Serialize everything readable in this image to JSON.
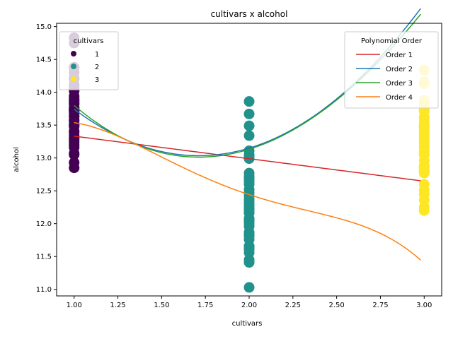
{
  "chart_data": {
    "type": "scatter",
    "title": "cultivars x alcohol",
    "xlabel": "cultivars",
    "ylabel": "alcohol",
    "xlim": [
      0.9,
      3.1
    ],
    "ylim": [
      10.9,
      15.05
    ],
    "xticks": [
      "1.00",
      "1.25",
      "1.50",
      "1.75",
      "2.00",
      "2.25",
      "2.50",
      "2.75",
      "3.00"
    ],
    "yticks": [
      "11.0",
      "11.5",
      "12.0",
      "12.5",
      "13.0",
      "13.5",
      "14.0",
      "14.5",
      "15.0"
    ],
    "grid": false,
    "scatter_series": [
      {
        "name": "1",
        "color": "#440154",
        "x": 1,
        "y": [
          14.83,
          14.75,
          14.38,
          14.37,
          14.3,
          14.22,
          14.2,
          14.21,
          14.1,
          14.12,
          14.06,
          14.02,
          13.94,
          13.9,
          13.88,
          13.86,
          13.83,
          13.82,
          13.77,
          13.76,
          13.74,
          13.73,
          13.72,
          13.71,
          13.68,
          13.64,
          13.63,
          13.58,
          13.56,
          13.51,
          13.5,
          13.48,
          13.41,
          13.39,
          13.34,
          13.3,
          13.28,
          13.24,
          13.2,
          13.16,
          13.07,
          13.05,
          12.93,
          12.85
        ]
      },
      {
        "name": "2",
        "color": "#21918c",
        "x": 2,
        "y": [
          13.86,
          13.67,
          13.49,
          13.34,
          13.11,
          13.05,
          13.03,
          12.99,
          12.77,
          12.72,
          12.7,
          12.67,
          12.64,
          12.6,
          12.52,
          12.47,
          12.42,
          12.37,
          12.33,
          12.29,
          12.25,
          12.22,
          12.21,
          12.17,
          12.16,
          12.08,
          12.07,
          12.04,
          12.0,
          11.96,
          11.87,
          11.84,
          11.82,
          11.81,
          11.76,
          11.66,
          11.65,
          11.62,
          11.61,
          11.56,
          11.45,
          11.41,
          11.03
        ]
      },
      {
        "name": "3",
        "color": "#fde725",
        "x": 3,
        "y": [
          14.34,
          14.16,
          14.13,
          13.88,
          13.84,
          13.78,
          13.73,
          13.71,
          13.62,
          13.58,
          13.52,
          13.5,
          13.49,
          13.48,
          13.45,
          13.4,
          13.36,
          13.32,
          13.27,
          13.23,
          13.17,
          13.16,
          13.11,
          13.08,
          13.05,
          12.96,
          12.88,
          12.87,
          12.86,
          12.85,
          12.82,
          12.81,
          12.79,
          12.77,
          12.6,
          12.51,
          12.45,
          12.36,
          12.25,
          12.2
        ]
      }
    ],
    "fit_x_range": [
      1.0,
      2.98
    ],
    "fits": [
      {
        "name": "Order 1",
        "color": "#d62728",
        "coeffs": [
          13.675,
          -0.343
        ]
      },
      {
        "name": "Order 2",
        "color": "#1f77b4",
        "coeffs": [
          17.124,
          -4.776,
          1.3945
        ]
      },
      {
        "name": "Order 3",
        "color": "#2ca02c",
        "coeffs": [
          17.855,
          -5.949,
          1.994,
          -0.1
        ]
      },
      {
        "name": "Order 4",
        "color": "#ff7f0e",
        "coeffs": [
          9.23,
          12.134,
          -11.49,
          4.215,
          -0.551
        ]
      }
    ],
    "legend_scatter": {
      "title": "cultivars",
      "position": "top-left"
    },
    "legend_fits": {
      "title": "Polynomial Order",
      "position": "top-right"
    }
  }
}
